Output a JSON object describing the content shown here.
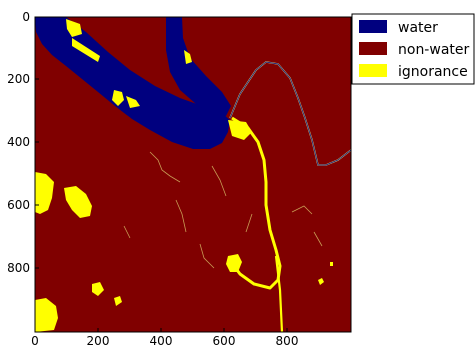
{
  "colors": {
    "water": "#00007f",
    "non_water": "#800000",
    "ignorance": "#ffff00",
    "frame": "#000000"
  },
  "axes": {
    "x_ticks": [
      "0",
      "200",
      "400",
      "600",
      "800"
    ],
    "y_ticks": [
      "0",
      "200",
      "400",
      "600",
      "800"
    ],
    "x_range": [
      0,
      1000
    ],
    "y_range": [
      0,
      1000
    ]
  },
  "legend": {
    "placement": "upper-right outside plot",
    "items": [
      {
        "key": "water",
        "label": "water"
      },
      {
        "key": "non_water",
        "label": "non-water"
      },
      {
        "key": "ignorance",
        "label": "ignorance"
      }
    ]
  }
}
